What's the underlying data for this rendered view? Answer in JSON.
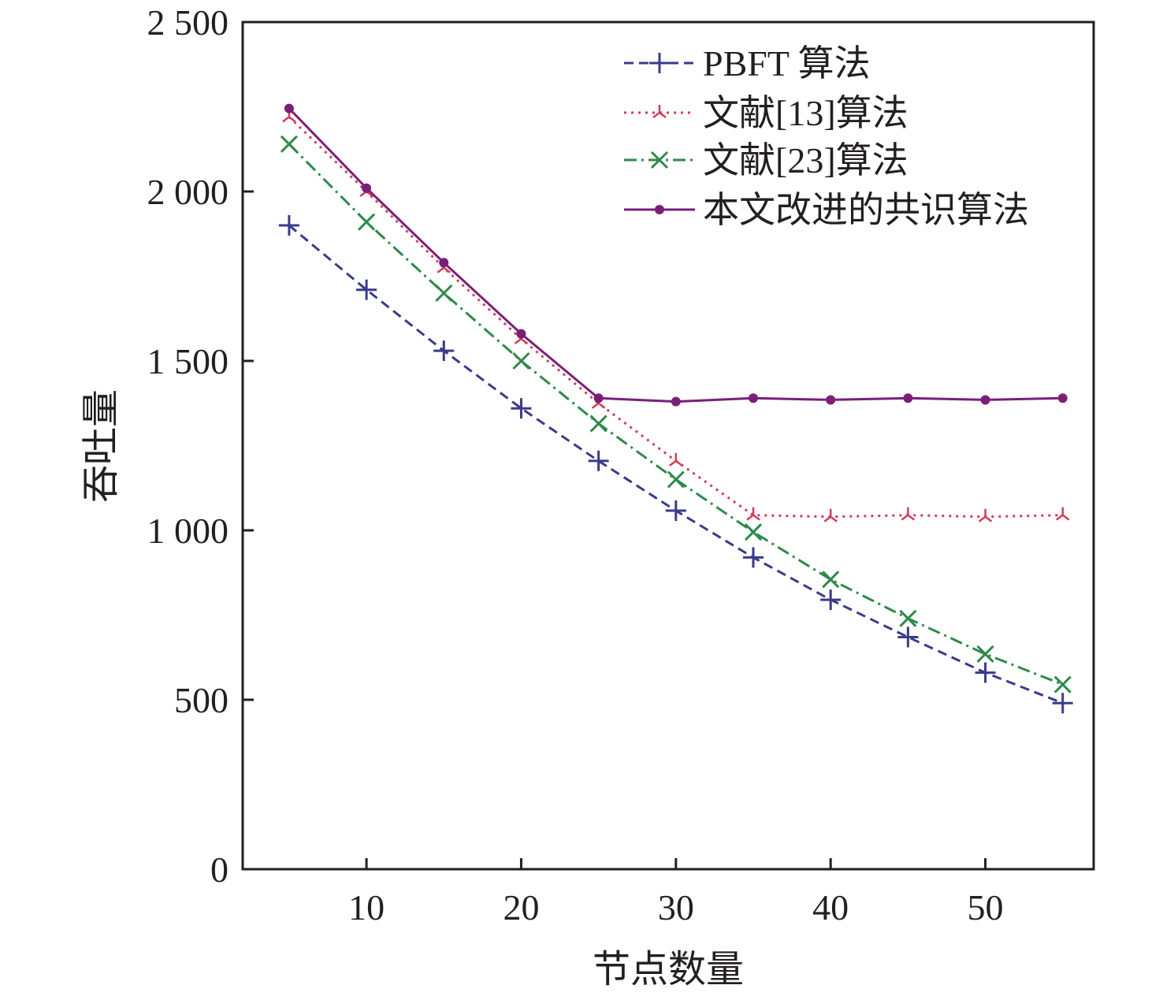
{
  "chart_data": {
    "type": "line",
    "title": "",
    "xlabel": "节点数量",
    "ylabel": "吞吐量",
    "xlim": [
      2,
      57
    ],
    "ylim": [
      0,
      2500
    ],
    "x_ticks": [
      10,
      20,
      30,
      40,
      50
    ],
    "y_ticks": [
      0,
      500,
      1000,
      1500,
      2000,
      2500
    ],
    "x_tick_labels": [
      "10",
      "20",
      "30",
      "40",
      "50"
    ],
    "y_tick_labels": [
      "0",
      "500",
      "1 000",
      "1 500",
      "2 000",
      "2 500"
    ],
    "x": [
      5,
      10,
      15,
      20,
      25,
      30,
      35,
      40,
      45,
      50,
      55
    ],
    "grid": false,
    "legend_position": "top-right",
    "series": [
      {
        "name": "PBFT 算法",
        "style": "dashed",
        "marker": "plus",
        "color": "#3a3a8c",
        "values": [
          1900,
          1710,
          1530,
          1360,
          1205,
          1058,
          920,
          795,
          685,
          580,
          490
        ]
      },
      {
        "name": "文献[13]算法",
        "style": "dotted",
        "marker": "tri",
        "color": "#d23c5a",
        "values": [
          2220,
          2000,
          1775,
          1565,
          1375,
          1205,
          1045,
          1040,
          1045,
          1040,
          1045
        ]
      },
      {
        "name": "文献[23]算法",
        "style": "dashdot",
        "marker": "x",
        "color": "#2e8a4a",
        "values": [
          2140,
          1910,
          1700,
          1500,
          1315,
          1150,
          995,
          855,
          740,
          635,
          545
        ]
      },
      {
        "name": "本文改进的共识算法",
        "style": "solid",
        "marker": "dot",
        "color": "#7a1f78",
        "values": [
          2245,
          2010,
          1790,
          1580,
          1390,
          1380,
          1390,
          1385,
          1390,
          1385,
          1390
        ]
      }
    ]
  }
}
